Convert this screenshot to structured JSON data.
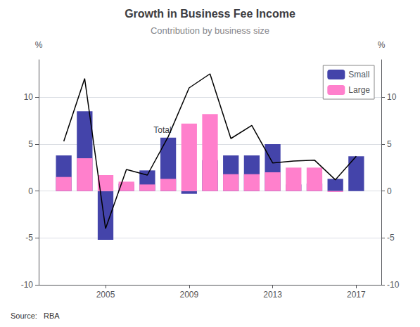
{
  "chart_data": {
    "type": "bar",
    "title": "Growth in Business Fee Income",
    "subtitle": "Contribution by business size",
    "source": "Source:   RBA",
    "ylabel": "%",
    "y2label": "%",
    "x": [
      2003,
      2004,
      2005,
      2006,
      2007,
      2008,
      2009,
      2010,
      2011,
      2012,
      2013,
      2014,
      2015,
      2016,
      2017
    ],
    "xlim": [
      2001.8,
      2018.2
    ],
    "xticks": [
      2005,
      2009,
      2013,
      2017
    ],
    "ylim": [
      -10,
      14
    ],
    "yticks": [
      -10,
      -5,
      0,
      5,
      10
    ],
    "y2lim": [
      -10,
      14
    ],
    "y2ticks": [
      -10,
      -5,
      0,
      5,
      10
    ],
    "stacked": true,
    "grid": true,
    "legend": "upper right",
    "series": [
      {
        "name": "Small",
        "type": "bar",
        "color": "#4444aa",
        "values": [
          3.8,
          8.5,
          -5.2,
          0.8,
          2.2,
          5.7,
          -0.3,
          3.3,
          3.8,
          3.8,
          5.0,
          0.7,
          0.8,
          1.3,
          3.7
        ]
      },
      {
        "name": "Large",
        "type": "bar",
        "color": "#ff80cc",
        "values": [
          1.5,
          3.5,
          1.7,
          1.0,
          0.7,
          1.3,
          7.2,
          8.2,
          1.8,
          1.8,
          2.0,
          2.5,
          2.5,
          -0.1,
          0.0
        ]
      },
      {
        "type": "line",
        "color": "#000000",
        "values": [
          5.3,
          12.0,
          -4.0,
          2.3,
          1.7,
          5.8,
          11.0,
          12.5,
          5.6,
          7.0,
          3.0,
          3.2,
          3.3,
          1.2,
          3.7
        ]
      }
    ],
    "annotations": [
      {
        "text": "Total",
        "x": 2007.3,
        "y": 6.5
      }
    ]
  }
}
